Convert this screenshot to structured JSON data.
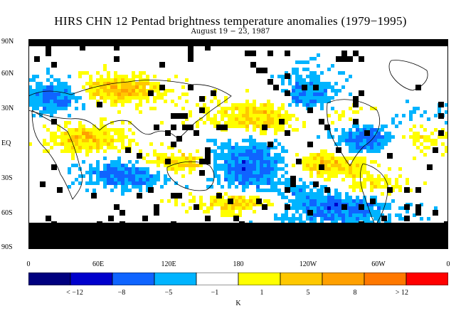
{
  "title": "HIRS CHN 12 Pentad brightness temperature anomalies (1979−1995)",
  "subtitle": "August 19 − 23, 1987",
  "map": {
    "lat_labels": [
      "90N",
      "60N",
      "30N",
      "EQ",
      "30S",
      "60S",
      "90S"
    ],
    "lon_labels": [
      "0",
      "60E",
      "120E",
      "180",
      "120W",
      "60W",
      "0"
    ],
    "missing_color": "#000000",
    "land_outline_color": "#000000"
  },
  "colorbar": {
    "colors": [
      "#00007f",
      "#0000cc",
      "#0f64ff",
      "#00b4ff",
      "#ffffff",
      "#ffff00",
      "#ffc800",
      "#ffa000",
      "#ff7800",
      "#ff0000"
    ],
    "labels": [
      "< −12",
      "−8",
      "−5",
      "−1",
      "1",
      "5",
      "8",
      "> 12"
    ],
    "unit": "K"
  }
}
